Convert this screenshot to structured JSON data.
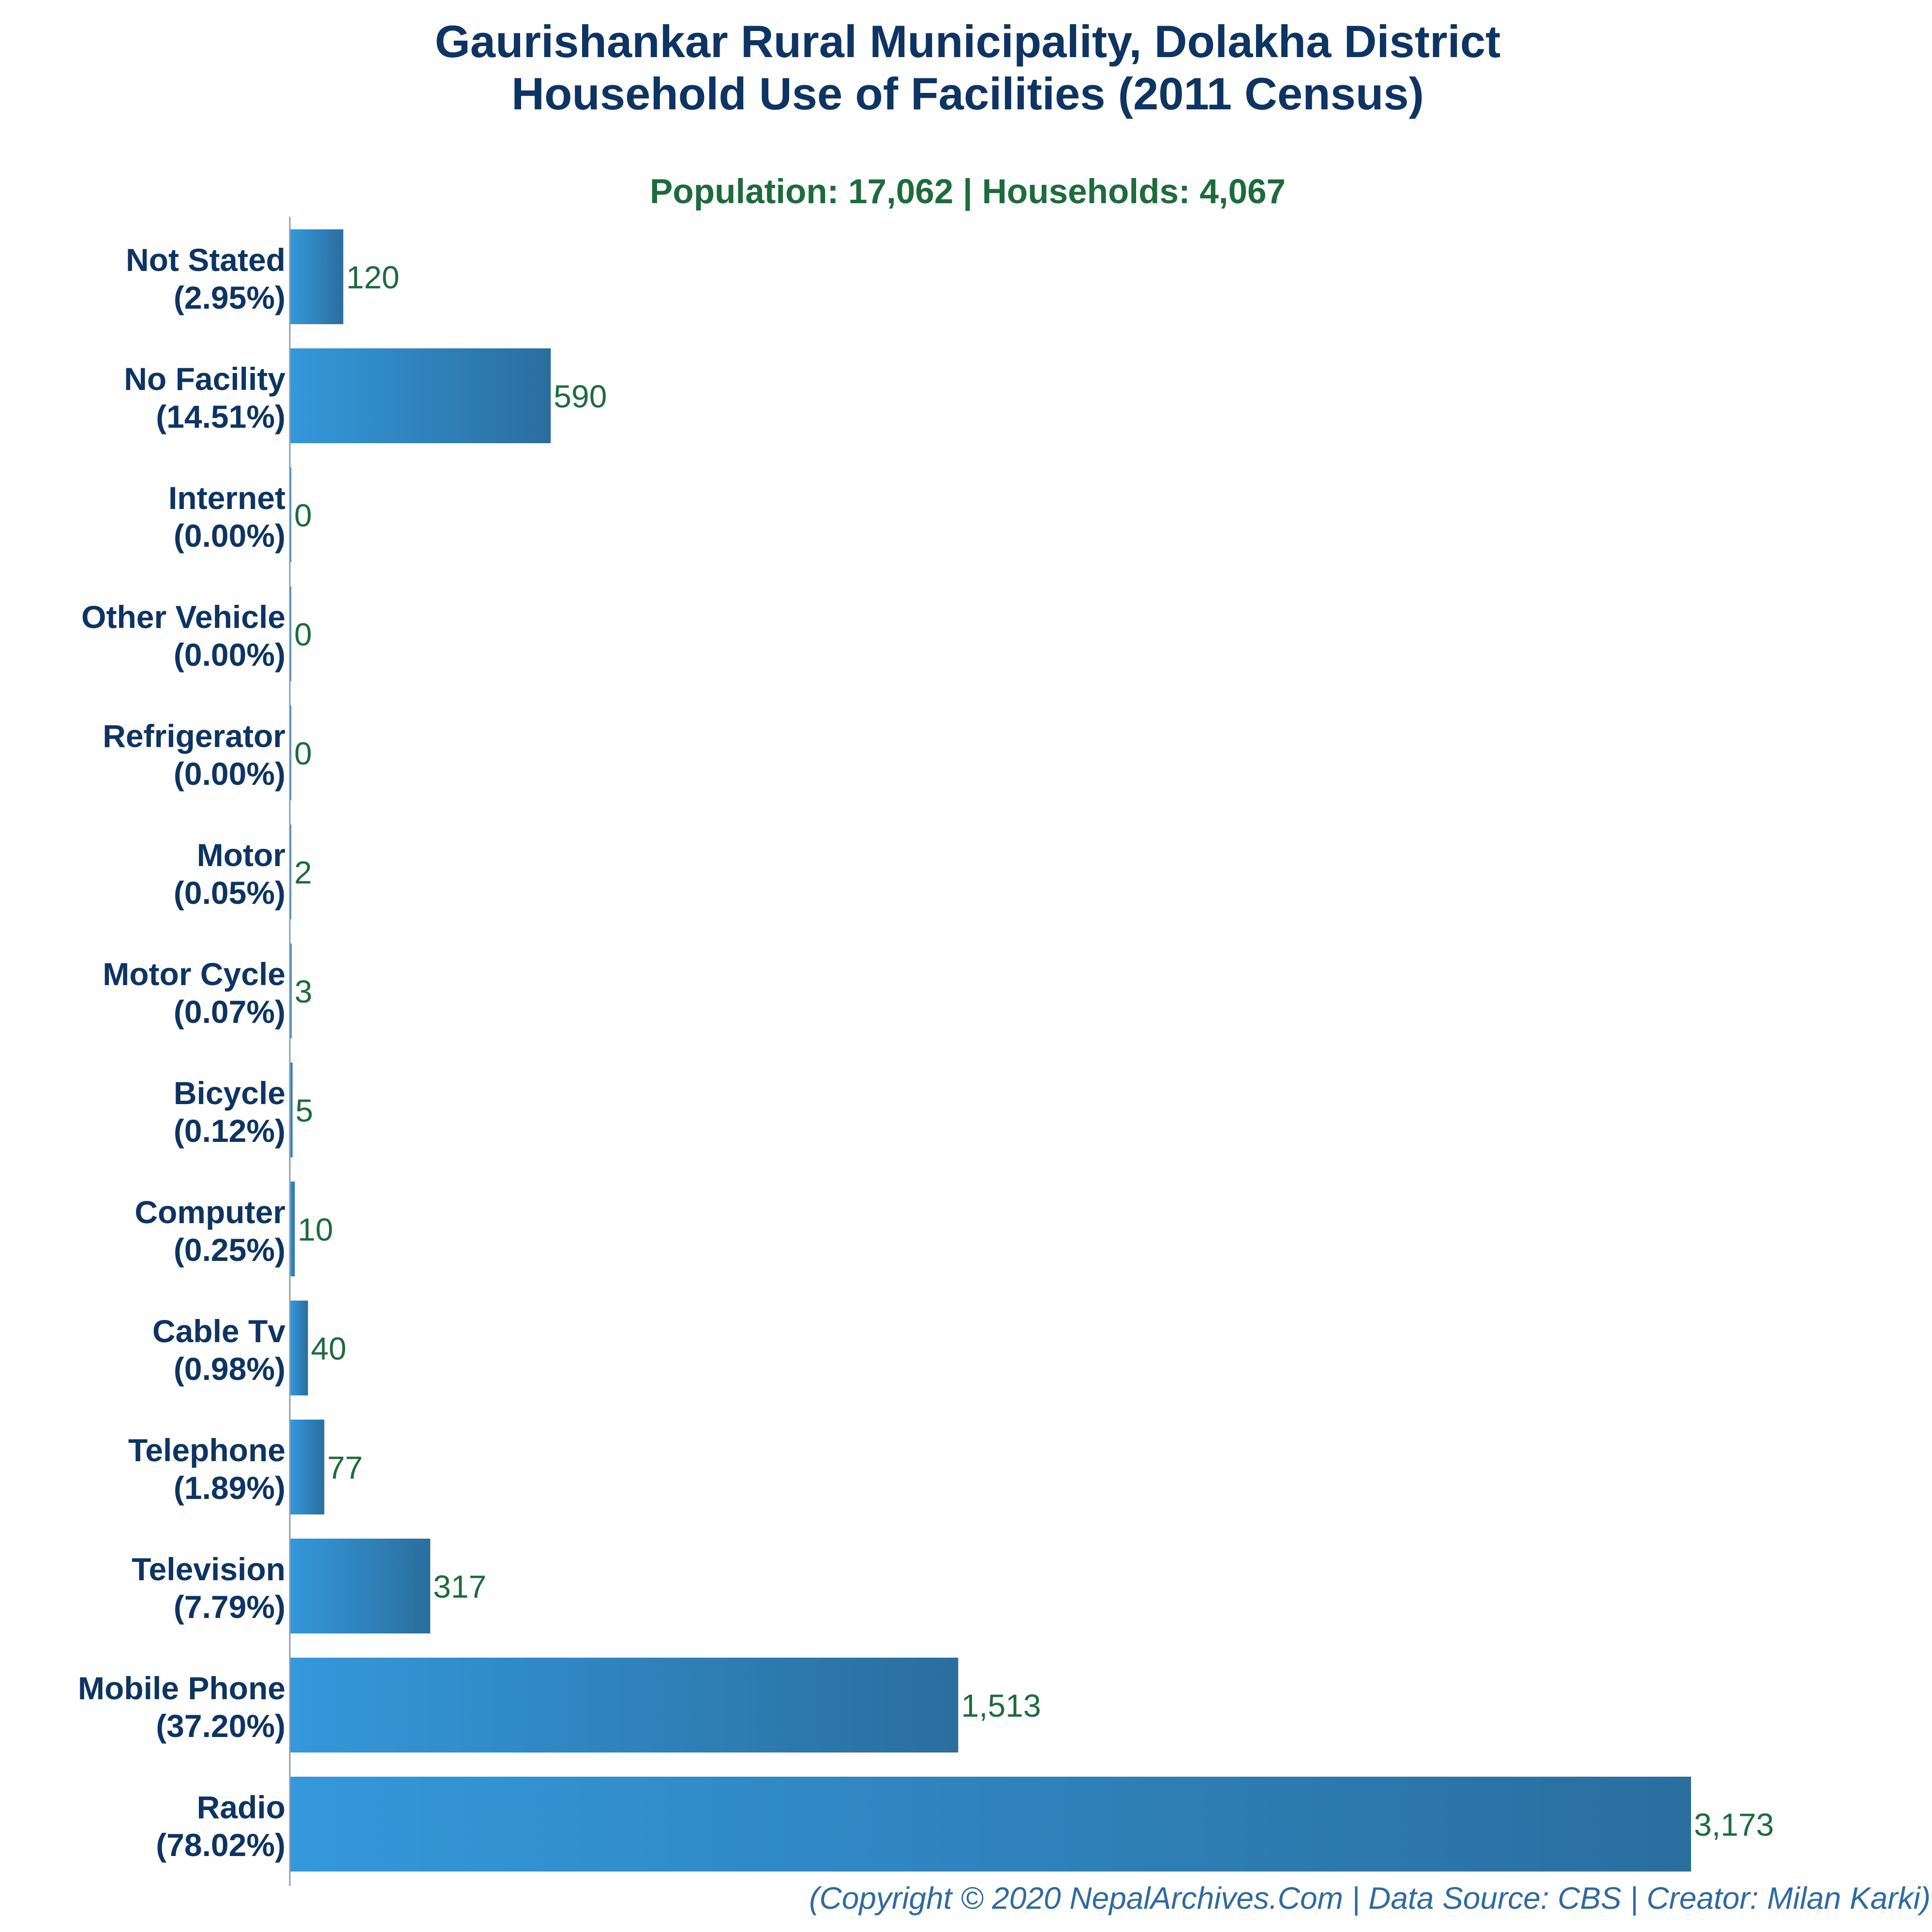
{
  "chart_data": {
    "type": "bar",
    "orientation": "horizontal",
    "title_lines": [
      "Gaurishankar Rural Municipality, Dolakha District",
      "Household Use of Facilities (2011 Census)"
    ],
    "subtitle": "Population: 17,062 | Households: 4,067",
    "categories": [
      {
        "name": "Not Stated",
        "pct": "(2.95%)",
        "value": 120,
        "value_label": "120"
      },
      {
        "name": "No Facility",
        "pct": "(14.51%)",
        "value": 590,
        "value_label": "590"
      },
      {
        "name": "Internet",
        "pct": "(0.00%)",
        "value": 0,
        "value_label": "0"
      },
      {
        "name": "Other Vehicle",
        "pct": "(0.00%)",
        "value": 0,
        "value_label": "0"
      },
      {
        "name": "Refrigerator",
        "pct": "(0.00%)",
        "value": 0,
        "value_label": "0"
      },
      {
        "name": "Motor",
        "pct": "(0.05%)",
        "value": 2,
        "value_label": "2"
      },
      {
        "name": "Motor Cycle",
        "pct": "(0.07%)",
        "value": 3,
        "value_label": "3"
      },
      {
        "name": "Bicycle",
        "pct": "(0.12%)",
        "value": 5,
        "value_label": "5"
      },
      {
        "name": "Computer",
        "pct": "(0.25%)",
        "value": 10,
        "value_label": "10"
      },
      {
        "name": "Cable Tv",
        "pct": "(0.98%)",
        "value": 40,
        "value_label": "40"
      },
      {
        "name": "Telephone",
        "pct": "(1.89%)",
        "value": 77,
        "value_label": "77"
      },
      {
        "name": "Television",
        "pct": "(7.79%)",
        "value": 317,
        "value_label": "317"
      },
      {
        "name": "Mobile Phone",
        "pct": "(37.20%)",
        "value": 1513,
        "value_label": "1,513"
      },
      {
        "name": "Radio",
        "pct": "(78.02%)",
        "value": 3173,
        "value_label": "3,173"
      }
    ],
    "xlim": [
      0,
      3173
    ],
    "grid": false,
    "legend": "none",
    "footer": "(Copyright © 2020 NepalArchives.Com | Data Source: CBS | Creator: Milan Karki)"
  },
  "colors": {
    "bar_gradient_start": "#3498db",
    "bar_gradient_end": "#2a6e9e",
    "title": "#0d3462",
    "subtitle": "#1e6b3c",
    "value_label": "#1e6b3c",
    "footer": "#2f6aa0",
    "axis": "#8aa0b4"
  }
}
